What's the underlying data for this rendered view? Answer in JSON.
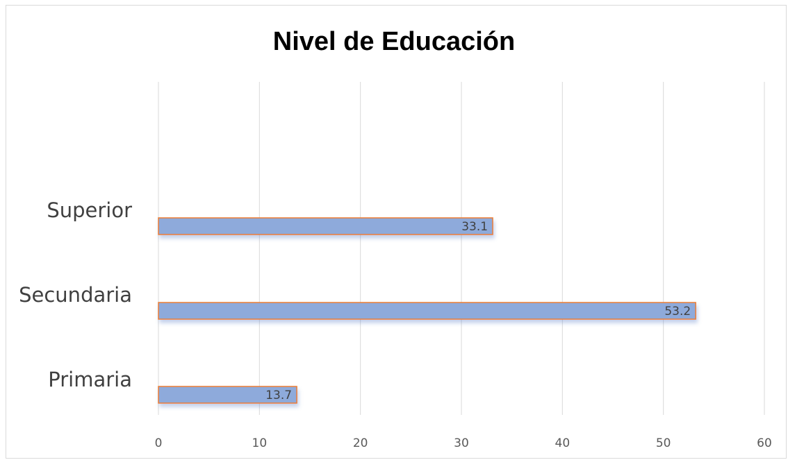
{
  "chart_data": {
    "type": "bar",
    "orientation": "horizontal",
    "title": "Nivel de Educación",
    "categories": [
      "Superior",
      "Secundaria",
      "Primaria"
    ],
    "values": [
      33.1,
      53.2,
      13.7
    ],
    "data_labels": [
      "33.1",
      "53.2",
      "13.7"
    ],
    "xlabel": "",
    "ylabel": "",
    "xlim": [
      0,
      60
    ],
    "xticks": [
      "0",
      "10",
      "20",
      "30",
      "40",
      "50",
      "60"
    ],
    "grid": "vertical",
    "legend": "none",
    "colors": {
      "bar_fill": "#8eaadb",
      "bar_edge": "#ed7d31",
      "grid": "#d9d9d9"
    }
  }
}
